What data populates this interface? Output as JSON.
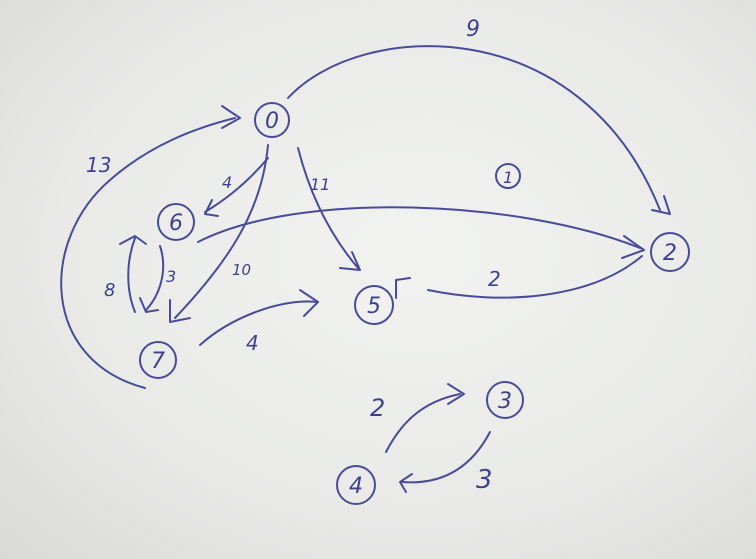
{
  "nodes": [
    {
      "id": "0",
      "label": "0"
    },
    {
      "id": "6",
      "label": "6"
    },
    {
      "id": "7",
      "label": "7"
    },
    {
      "id": "5",
      "label": "5"
    },
    {
      "id": "2",
      "label": "2"
    },
    {
      "id": "3",
      "label": "3"
    },
    {
      "id": "4",
      "label": "4"
    }
  ],
  "edges": [
    {
      "from": "0",
      "to": "2",
      "weight": "9"
    },
    {
      "from": "0",
      "to": "5",
      "weight": "11"
    },
    {
      "from": "0",
      "to": "7",
      "weight": "10"
    },
    {
      "from": "6",
      "to": "0",
      "weight": "4"
    },
    {
      "from": "7",
      "to": "0",
      "weight": "13"
    },
    {
      "from": "6",
      "to": "2",
      "weight": "1"
    },
    {
      "from": "5",
      "to": "2",
      "weight": "2"
    },
    {
      "from": "6",
      "to": "7",
      "weight": "3"
    },
    {
      "from": "7",
      "to": "6",
      "weight": "8"
    },
    {
      "from": "7",
      "to": "5",
      "weight": "4"
    },
    {
      "from": "4",
      "to": "3",
      "weight": "2"
    },
    {
      "from": "3",
      "to": "4",
      "weight": "3"
    }
  ],
  "ink_color": "#4a4a9a",
  "paper_color": "#eceeeb"
}
